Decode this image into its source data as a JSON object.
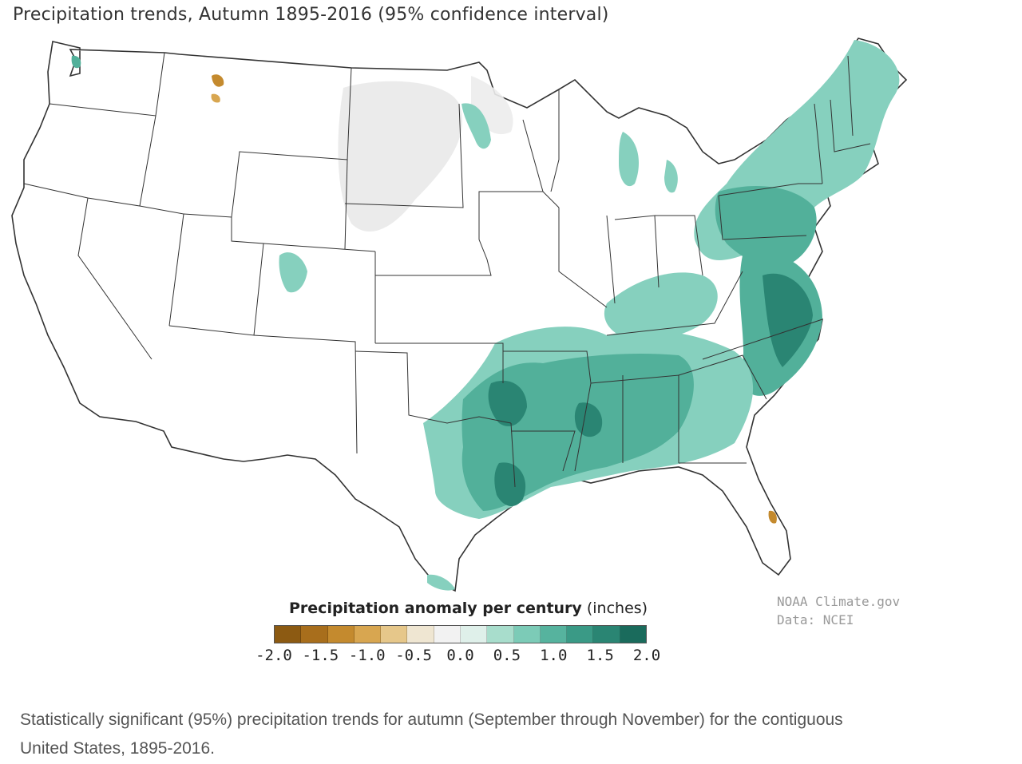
{
  "title": "Precipitation trends, Autumn 1895-2016 (95% confidence interval)",
  "legend": {
    "title_main": "Precipitation anomaly per century",
    "title_unit": "(inches)",
    "ticks": [
      "-2.0",
      "-1.5",
      "-1.0",
      "-0.5",
      "0.0",
      "0.5",
      "1.0",
      "1.5",
      "2.0"
    ],
    "colors": [
      "#8c5a12",
      "#a86e1c",
      "#c48a2e",
      "#d8a650",
      "#e6c78a",
      "#efe6d2",
      "#f2f2f2",
      "#dff0ea",
      "#a8ddcc",
      "#7ccbb7",
      "#56b39e",
      "#3a9a86",
      "#2a8573",
      "#1a6b5c"
    ]
  },
  "credit": {
    "line1": "NOAA Climate.gov",
    "line2": "Data: NCEI"
  },
  "caption": "Statistically significant (95%) precipitation trends for autumn (September through November) for the contiguous United States, 1895-2016.",
  "colors": {
    "outline": "#333333",
    "dry": "#c48a2e",
    "neutral": "#e9e9e9",
    "wet_light": "#86d0be",
    "wet_mid": "#52b09a",
    "wet_dark": "#2a8573"
  }
}
